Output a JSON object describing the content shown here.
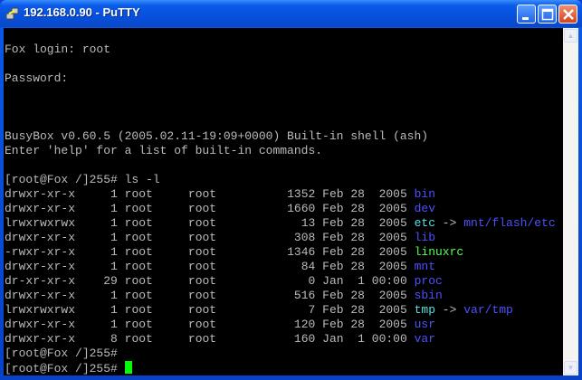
{
  "window": {
    "title": "192.168.0.90 - PuTTY"
  },
  "colors": {
    "text": "#bbbbbb",
    "dir": "#5050ff",
    "link": "#55e0e0",
    "exec": "#55ff55",
    "cursor": "#00ff00"
  },
  "terminal": {
    "pre_lines": [
      "",
      "Fox login: root",
      "",
      "Password:",
      "",
      "",
      "",
      "BusyBox v0.60.5 (2005.02.11-19:09+0000) Built-in shell (ash)",
      "Enter 'help' for a list of built-in commands.",
      ""
    ],
    "command_line": "[root@Fox /]255# ls -l",
    "listing": [
      {
        "perms": "drwxr-xr-x",
        "links": "1",
        "owner": "root",
        "group": "root",
        "size": "1352",
        "date": "Feb 28  2005",
        "name": "bin",
        "type": "dir"
      },
      {
        "perms": "drwxr-xr-x",
        "links": "1",
        "owner": "root",
        "group": "root",
        "size": "1660",
        "date": "Feb 28  2005",
        "name": "dev",
        "type": "dir"
      },
      {
        "perms": "lrwxrwxrwx",
        "links": "1",
        "owner": "root",
        "group": "root",
        "size": "13",
        "date": "Feb 28  2005",
        "name": "etc",
        "type": "link",
        "target": "mnt/flash/etc"
      },
      {
        "perms": "drwxr-xr-x",
        "links": "1",
        "owner": "root",
        "group": "root",
        "size": "308",
        "date": "Feb 28  2005",
        "name": "lib",
        "type": "dir"
      },
      {
        "perms": "-rwxr-xr-x",
        "links": "1",
        "owner": "root",
        "group": "root",
        "size": "1346",
        "date": "Feb 28  2005",
        "name": "linuxrc",
        "type": "exec"
      },
      {
        "perms": "drwxr-xr-x",
        "links": "1",
        "owner": "root",
        "group": "root",
        "size": "84",
        "date": "Feb 28  2005",
        "name": "mnt",
        "type": "dir"
      },
      {
        "perms": "dr-xr-xr-x",
        "links": "29",
        "owner": "root",
        "group": "root",
        "size": "0",
        "date": "Jan  1 00:00",
        "name": "proc",
        "type": "dir"
      },
      {
        "perms": "drwxr-xr-x",
        "links": "1",
        "owner": "root",
        "group": "root",
        "size": "516",
        "date": "Feb 28  2005",
        "name": "sbin",
        "type": "dir"
      },
      {
        "perms": "lrwxrwxrwx",
        "links": "1",
        "owner": "root",
        "group": "root",
        "size": "7",
        "date": "Feb 28  2005",
        "name": "tmp",
        "type": "link",
        "target": "var/tmp"
      },
      {
        "perms": "drwxr-xr-x",
        "links": "1",
        "owner": "root",
        "group": "root",
        "size": "120",
        "date": "Feb 28  2005",
        "name": "usr",
        "type": "dir"
      },
      {
        "perms": "drwxr-xr-x",
        "links": "8",
        "owner": "root",
        "group": "root",
        "size": "160",
        "date": "Jan  1 00:00",
        "name": "var",
        "type": "dir"
      }
    ],
    "post_lines": [
      "[root@Fox /]255#"
    ],
    "current_prompt": "[root@Fox /]255# "
  }
}
